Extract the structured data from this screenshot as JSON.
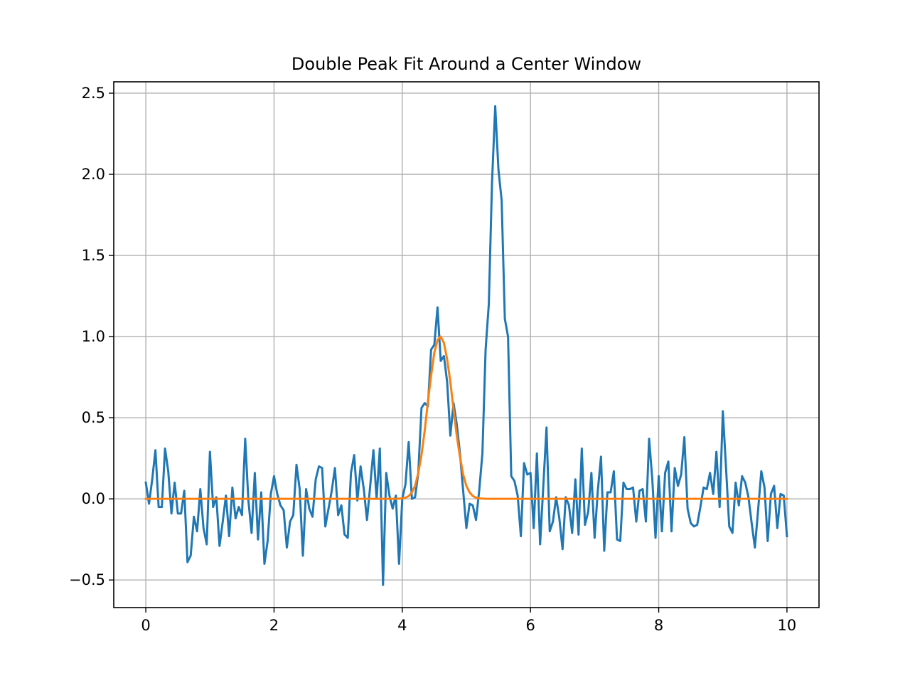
{
  "chart_data": {
    "type": "line",
    "title": "Double Peak Fit Around a Center Window",
    "xlabel": "",
    "ylabel": "",
    "xlim": [
      -0.5,
      10.5
    ],
    "ylim": [
      -0.67,
      2.57
    ],
    "x_ticks": [
      0,
      2,
      4,
      6,
      8,
      10
    ],
    "x_tick_labels": [
      "0",
      "2",
      "4",
      "6",
      "8",
      "10"
    ],
    "y_ticks": [
      -0.5,
      0.0,
      0.5,
      1.0,
      1.5,
      2.0,
      2.5
    ],
    "y_tick_labels": [
      "−0.5",
      "0.0",
      "0.5",
      "1.0",
      "1.5",
      "2.0",
      "2.5"
    ],
    "grid": true,
    "legend": "none",
    "series": [
      {
        "color": "#1f77b4",
        "x": [
          0.0,
          0.05,
          0.1,
          0.15,
          0.2,
          0.25,
          0.3,
          0.35,
          0.4,
          0.45,
          0.5,
          0.55,
          0.6,
          0.65,
          0.7,
          0.75,
          0.8,
          0.85,
          0.9,
          0.95,
          1.0,
          1.05,
          1.1,
          1.15,
          1.2,
          1.25,
          1.3,
          1.35,
          1.4,
          1.45,
          1.5,
          1.55,
          1.6,
          1.65,
          1.7,
          1.75,
          1.8,
          1.85,
          1.9,
          1.95,
          2.0,
          2.05,
          2.1,
          2.15,
          2.2,
          2.25,
          2.3,
          2.35,
          2.4,
          2.45,
          2.5,
          2.55,
          2.6,
          2.65,
          2.7,
          2.75,
          2.8,
          2.85,
          2.9,
          2.95,
          3.0,
          3.05,
          3.1,
          3.15,
          3.2,
          3.25,
          3.3,
          3.35,
          3.4,
          3.45,
          3.5,
          3.55,
          3.6,
          3.65,
          3.7,
          3.75,
          3.8,
          3.85,
          3.9,
          3.95,
          4.0,
          4.05,
          4.1,
          4.15,
          4.2,
          4.25,
          4.3,
          4.35,
          4.4,
          4.45,
          4.5,
          4.55,
          4.6,
          4.65,
          4.7,
          4.75,
          4.8,
          4.85,
          4.9,
          4.95,
          5.0,
          5.05,
          5.1,
          5.15,
          5.2,
          5.25,
          5.3,
          5.35,
          5.4,
          5.45,
          5.5,
          5.55,
          5.6,
          5.65,
          5.7,
          5.75,
          5.8,
          5.85,
          5.9,
          5.95,
          6.0,
          6.05,
          6.1,
          6.15,
          6.2,
          6.25,
          6.3,
          6.35,
          6.4,
          6.45,
          6.5,
          6.55,
          6.6,
          6.65,
          6.7,
          6.75,
          6.8,
          6.85,
          6.9,
          6.95,
          7.0,
          7.05,
          7.1,
          7.15,
          7.2,
          7.25,
          7.3,
          7.35,
          7.4,
          7.45,
          7.5,
          7.55,
          7.6,
          7.65,
          7.7,
          7.75,
          7.8,
          7.85,
          7.9,
          7.95,
          8.0,
          8.05,
          8.1,
          8.15,
          8.2,
          8.25,
          8.3,
          8.35,
          8.4,
          8.45,
          8.5,
          8.55,
          8.6,
          8.65,
          8.7,
          8.75,
          8.8,
          8.85,
          8.9,
          8.95,
          9.0,
          9.05,
          9.1,
          9.15,
          9.2,
          9.25,
          9.3,
          9.35,
          9.4,
          9.45,
          9.5,
          9.55,
          9.6,
          9.65,
          9.7,
          9.75,
          9.8,
          9.85,
          9.9,
          9.95,
          10.0
        ],
        "y": [
          0.1,
          -0.03,
          0.12,
          0.3,
          -0.05,
          -0.05,
          0.31,
          0.17,
          -0.09,
          0.1,
          -0.09,
          -0.09,
          0.05,
          -0.39,
          -0.35,
          -0.11,
          -0.2,
          0.06,
          -0.18,
          -0.28,
          0.29,
          -0.05,
          0.01,
          -0.29,
          -0.14,
          0.02,
          -0.23,
          0.07,
          -0.12,
          -0.05,
          -0.1,
          0.37,
          -0.01,
          -0.21,
          0.16,
          -0.25,
          0.04,
          -0.4,
          -0.26,
          0.03,
          0.14,
          0.03,
          -0.04,
          -0.07,
          -0.3,
          -0.14,
          -0.1,
          0.21,
          0.06,
          -0.35,
          0.06,
          -0.06,
          -0.11,
          0.12,
          0.2,
          0.19,
          -0.17,
          -0.06,
          0.05,
          0.19,
          -0.1,
          -0.04,
          -0.22,
          -0.24,
          0.16,
          0.27,
          -0.01,
          0.2,
          0.06,
          -0.13,
          0.08,
          0.3,
          0.0,
          0.31,
          -0.53,
          0.16,
          0.02,
          -0.06,
          0.02,
          -0.4,
          0.0,
          0.09,
          0.35,
          0.0,
          0.01,
          0.16,
          0.56,
          0.59,
          0.57,
          0.92,
          0.95,
          1.18,
          0.85,
          0.88,
          0.72,
          0.39,
          0.59,
          0.46,
          0.28,
          0.05,
          -0.18,
          -0.03,
          -0.04,
          -0.13,
          0.05,
          0.28,
          0.92,
          1.2,
          1.95,
          2.42,
          2.03,
          1.84,
          1.11,
          1.0,
          0.14,
          0.11,
          0.02,
          -0.23,
          0.22,
          0.15,
          0.16,
          -0.18,
          0.28,
          -0.28,
          0.08,
          0.44,
          -0.2,
          -0.14,
          0.01,
          -0.12,
          -0.31,
          0.01,
          -0.04,
          -0.21,
          0.12,
          -0.22,
          0.31,
          -0.16,
          -0.08,
          0.16,
          -0.24,
          0.05,
          0.26,
          -0.32,
          0.04,
          0.04,
          0.17,
          -0.25,
          -0.26,
          0.1,
          0.06,
          0.06,
          0.07,
          -0.14,
          0.05,
          0.06,
          -0.14,
          0.37,
          0.12,
          -0.24,
          0.14,
          -0.2,
          0.16,
          0.23,
          -0.2,
          0.19,
          0.08,
          0.15,
          0.38,
          -0.06,
          -0.15,
          -0.17,
          -0.16,
          -0.05,
          0.07,
          0.06,
          0.16,
          0.03,
          0.29,
          -0.05,
          0.54,
          0.19,
          -0.17,
          -0.21,
          0.1,
          -0.04,
          0.14,
          0.1,
          0.01,
          -0.15,
          -0.3,
          -0.07,
          0.17,
          0.07,
          -0.26,
          0.03,
          0.08,
          -0.18,
          0.03,
          0.02,
          -0.23
        ]
      },
      {
        "color": "#ff7f0e",
        "x": [
          0.0,
          3.8,
          3.9,
          4.0,
          4.05,
          4.1,
          4.15,
          4.2,
          4.25,
          4.3,
          4.35,
          4.4,
          4.45,
          4.5,
          4.55,
          4.6,
          4.65,
          4.7,
          4.75,
          4.8,
          4.85,
          4.9,
          4.95,
          5.0,
          5.05,
          5.1,
          5.15,
          5.2,
          5.3,
          5.4,
          10.0
        ],
        "y": [
          0.0,
          0.0,
          0.0,
          0.003,
          0.007,
          0.017,
          0.04,
          0.08,
          0.16,
          0.27,
          0.42,
          0.6,
          0.76,
          0.9,
          0.98,
          1.0,
          0.96,
          0.86,
          0.72,
          0.55,
          0.39,
          0.26,
          0.15,
          0.08,
          0.04,
          0.018,
          0.007,
          0.003,
          0.0,
          0.0,
          0.0
        ]
      }
    ]
  }
}
